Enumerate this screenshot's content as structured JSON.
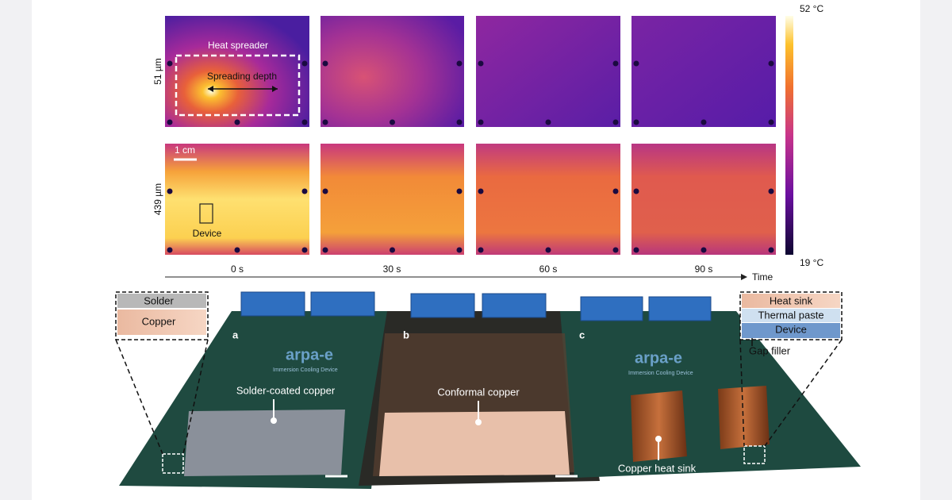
{
  "thermal": {
    "colorbar": {
      "max": "52 °C",
      "min": "19 °C"
    },
    "rows": [
      "51 µm",
      "439 µm"
    ],
    "times": [
      "0 s",
      "30 s",
      "60 s",
      "90 s"
    ],
    "axis_label": "Time",
    "annotations": {
      "heat_spreader": "Heat spreader",
      "spreading_depth": "Spreading depth",
      "scale": "1 cm",
      "device": "Device"
    }
  },
  "photo": {
    "panels": [
      "a",
      "b",
      "c"
    ],
    "labels": [
      "Solder-coated copper",
      "Conformal copper",
      "Copper heat sink"
    ],
    "board_text": [
      "arpa-e",
      "Immersion Cooling Device"
    ],
    "left_inset": [
      "Solder",
      "Copper"
    ],
    "right_inset": [
      "Heat sink",
      "Thermal paste",
      "Device"
    ],
    "gap_filler": "Gap filler"
  }
}
